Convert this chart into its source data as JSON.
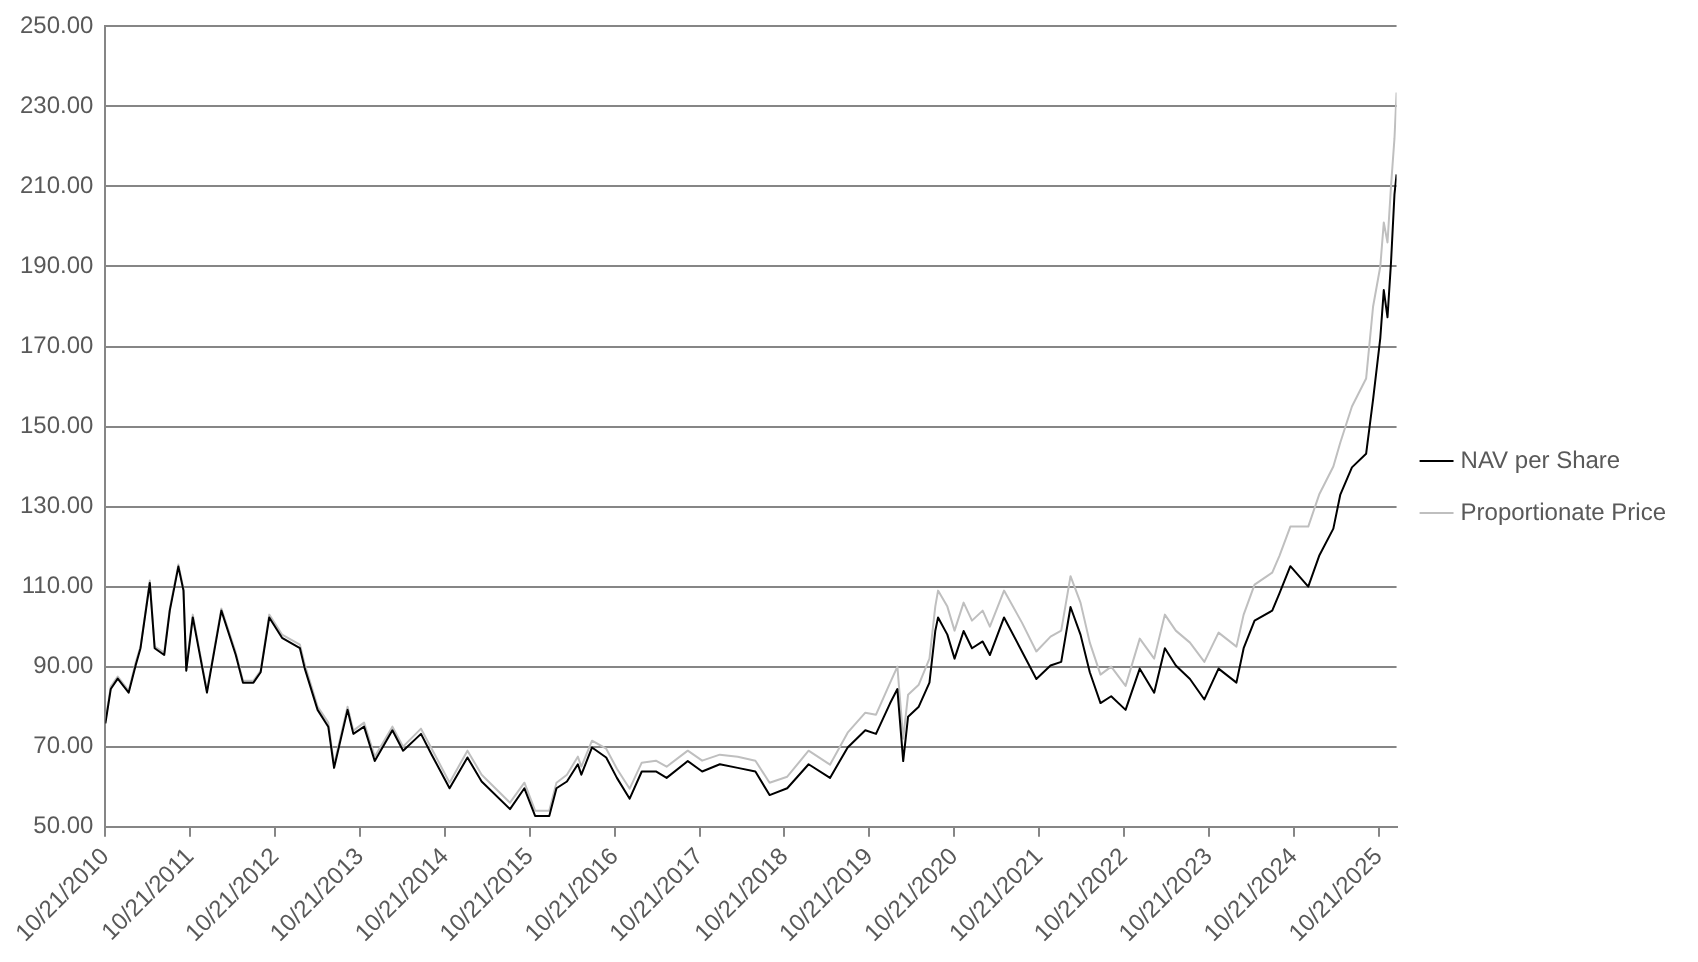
{
  "chart_data": {
    "type": "line",
    "xlim": [
      "2010-10-21",
      "2026-01-06"
    ],
    "xticks": [
      {
        "value": "2010-10-21",
        "label": "10/21/2010"
      },
      {
        "value": "2011-10-21",
        "label": "10/21/2011"
      },
      {
        "value": "2012-10-21",
        "label": "10/21/2012"
      },
      {
        "value": "2013-10-21",
        "label": "10/21/2013"
      },
      {
        "value": "2014-10-21",
        "label": "10/21/2014"
      },
      {
        "value": "2015-10-21",
        "label": "10/21/2015"
      },
      {
        "value": "2016-10-21",
        "label": "10/21/2016"
      },
      {
        "value": "2017-10-21",
        "label": "10/21/2017"
      },
      {
        "value": "2018-10-21",
        "label": "10/21/2018"
      },
      {
        "value": "2019-10-21",
        "label": "10/21/2019"
      },
      {
        "value": "2020-10-21",
        "label": "10/21/2020"
      },
      {
        "value": "2021-10-21",
        "label": "10/21/2021"
      },
      {
        "value": "2022-10-21",
        "label": "10/21/2022"
      },
      {
        "value": "2023-10-21",
        "label": "10/21/2023"
      },
      {
        "value": "2024-10-21",
        "label": "10/21/2024"
      },
      {
        "value": "2025-10-21",
        "label": "10/21/2025"
      }
    ],
    "ylim": [
      50,
      250
    ],
    "yticks": [
      {
        "value": 50,
        "label": "50.00"
      },
      {
        "value": 70,
        "label": "70.00"
      },
      {
        "value": 90,
        "label": "90.00"
      },
      {
        "value": 110,
        "label": "110.00"
      },
      {
        "value": 130,
        "label": "130.00"
      },
      {
        "value": 150,
        "label": "150.00"
      },
      {
        "value": 170,
        "label": "170.00"
      },
      {
        "value": 190,
        "label": "190.00"
      },
      {
        "value": 210,
        "label": "210.00"
      },
      {
        "value": 230,
        "label": "230.00"
      },
      {
        "value": 250,
        "label": "250.00"
      }
    ],
    "grid": "y",
    "legend": "right",
    "marker": "none",
    "line_style": "solid",
    "x": [
      "2010-10-21",
      "2010-11-13",
      "2010-12-13",
      "2011-01-29",
      "2011-02-28",
      "2011-03-21",
      "2011-04-30",
      "2011-05-21",
      "2011-07-01",
      "2011-07-25",
      "2011-08-31",
      "2011-09-22",
      "2011-10-04",
      "2011-11-01",
      "2012-01-01",
      "2012-03-03",
      "2012-05-04",
      "2012-06-04",
      "2012-07-19",
      "2012-08-19",
      "2012-09-25",
      "2012-11-19",
      "2013-02-04",
      "2013-02-25",
      "2013-04-21",
      "2013-06-06",
      "2013-07-01",
      "2013-08-28",
      "2013-09-22",
      "2013-11-07",
      "2013-12-23",
      "2014-03-09",
      "2014-04-24",
      "2014-07-10",
      "2014-08-25",
      "2014-11-10",
      "2015-01-26",
      "2015-03-28",
      "2015-07-28",
      "2015-09-28",
      "2015-11-13",
      "2016-01-13",
      "2016-02-13",
      "2016-03-29",
      "2016-05-15",
      "2016-05-30",
      "2016-07-15",
      "2016-09-14",
      "2016-10-30",
      "2016-12-24",
      "2017-02-14",
      "2017-04-16",
      "2017-06-01",
      "2017-08-31",
      "2017-11-01",
      "2018-01-16",
      "2018-04-03",
      "2018-06-18",
      "2018-08-18",
      "2018-11-02",
      "2019-02-02",
      "2019-05-05",
      "2019-07-20",
      "2019-10-04",
      "2019-11-19",
      "2020-01-19",
      "2020-02-19",
      "2020-03-15",
      "2020-04-05",
      "2020-05-21",
      "2020-07-06",
      "2020-07-31",
      "2020-08-12",
      "2020-09-21",
      "2020-10-22",
      "2020-11-30",
      "2021-01-05",
      "2021-02-20",
      "2021-03-23",
      "2021-05-23",
      "2021-08-08",
      "2021-10-09",
      "2021-12-09",
      "2022-01-24",
      "2022-03-05",
      "2022-04-17",
      "2022-05-27",
      "2022-07-12",
      "2022-08-27",
      "2022-10-28",
      "2022-12-28",
      "2023-02-28",
      "2023-04-15",
      "2023-06-01",
      "2023-08-01",
      "2023-10-02",
      "2023-12-02",
      "2024-02-17",
      "2024-03-19",
      "2024-05-05",
      "2024-07-20",
      "2024-08-20",
      "2024-10-06",
      "2024-12-22",
      "2025-02-07",
      "2025-04-09",
      "2025-05-09",
      "2025-06-28",
      "2025-08-28",
      "2025-09-27",
      "2025-10-28",
      "2025-11-12",
      "2025-11-28",
      "2025-12-13",
      "2025-12-28",
      "2026-01-06"
    ],
    "series": [
      {
        "name": "Proportionate Price",
        "color": "#bfbfbf",
        "values": [
          76.5,
          85,
          87.5,
          84,
          91,
          95,
          111.5,
          95,
          93.5,
          104.5,
          115.5,
          109.5,
          89.5,
          103,
          84,
          104.5,
          93.5,
          86.5,
          86.5,
          89,
          103,
          98,
          95.5,
          90.5,
          80,
          76,
          65.5,
          80,
          74,
          76,
          67.5,
          75,
          70,
          74.5,
          69.5,
          61,
          69,
          63,
          56,
          61,
          54,
          54,
          61,
          63,
          67.5,
          65,
          71.5,
          69.5,
          64.5,
          59.5,
          66,
          66.5,
          65,
          69,
          66.5,
          68,
          67.5,
          66.5,
          61,
          62.5,
          69,
          65.5,
          73.5,
          78.5,
          78,
          86,
          90,
          72,
          83,
          85.5,
          92,
          105,
          109,
          105,
          99,
          106,
          101.5,
          104,
          100,
          109,
          101,
          93.8,
          97.5,
          99,
          112.6,
          106,
          96,
          88,
          90,
          85.2,
          97,
          92,
          103,
          99,
          96,
          91.2,
          98.5,
          95,
          103,
          110.5,
          113.5,
          117.7,
          125,
          125,
          133,
          140,
          146,
          155,
          162,
          180,
          190,
          201,
          196,
          210,
          222,
          233.5
        ]
      },
      {
        "name": "NAV per Share",
        "color": "#000000",
        "values": [
          75.8,
          84.4,
          87,
          83.5,
          90.3,
          94.6,
          110.9,
          94.6,
          92.9,
          104,
          115,
          109,
          89,
          102.3,
          83.5,
          104,
          92.9,
          86,
          86,
          88.6,
          102.3,
          97.2,
          94.6,
          89.5,
          79.2,
          75,
          64.7,
          79.2,
          73.2,
          75,
          66.4,
          74.1,
          69,
          73.2,
          68,
          59.6,
          67.3,
          61.3,
          54.4,
          59.6,
          52.7,
          52.7,
          59.6,
          61.3,
          65.6,
          63,
          69.8,
          67.3,
          62.2,
          57,
          63.8,
          63.8,
          62.2,
          66.4,
          63.8,
          65.6,
          64.7,
          63.8,
          57.9,
          59.6,
          65.6,
          62.2,
          69.8,
          74.1,
          73.2,
          80.9,
          84.4,
          66.4,
          77.5,
          80,
          86,
          98.9,
          102.3,
          98,
          92,
          98.9,
          94.6,
          96.3,
          92.9,
          102.3,
          93.8,
          86.9,
          90.3,
          91.2,
          104.9,
          98,
          88.6,
          80.9,
          82.6,
          79.2,
          89.5,
          83.5,
          94.6,
          90.3,
          86.9,
          81.8,
          89.5,
          86,
          94.6,
          101.5,
          104,
          108.3,
          115.1,
          110,
          117.7,
          124.5,
          133,
          139.8,
          143.2,
          156.8,
          172.1,
          184.1,
          177.3,
          190.9,
          208,
          213
        ]
      }
    ]
  }
}
